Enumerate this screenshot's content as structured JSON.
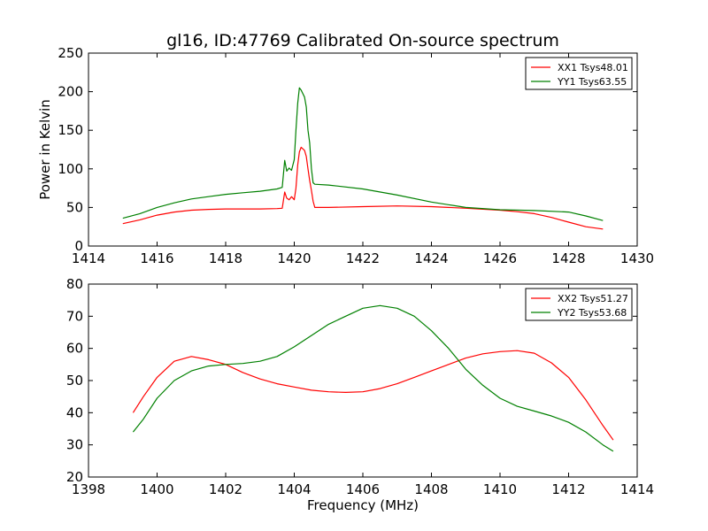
{
  "chart_data": [
    {
      "type": "line",
      "title": "gl16, ID:47769 Calibrated On-source spectrum",
      "xlabel": "",
      "ylabel": "Power in Kelvin",
      "xlim": [
        1414,
        1430
      ],
      "ylim": [
        0,
        250
      ],
      "xticks": [
        1414,
        1416,
        1418,
        1420,
        1422,
        1424,
        1426,
        1428,
        1430
      ],
      "yticks": [
        0,
        50,
        100,
        150,
        200,
        250
      ],
      "grid": false,
      "legend_position": "top-right",
      "series": [
        {
          "name": "XX1 Tsys48.01",
          "color": "#ff0000",
          "points": [
            [
              1415.0,
              29
            ],
            [
              1415.5,
              34
            ],
            [
              1416.0,
              40
            ],
            [
              1416.5,
              44
            ],
            [
              1417.0,
              46.5
            ],
            [
              1417.5,
              47.5
            ],
            [
              1418.0,
              48
            ],
            [
              1418.5,
              48
            ],
            [
              1419.0,
              48
            ],
            [
              1419.5,
              48.5
            ],
            [
              1419.65,
              49
            ],
            [
              1419.72,
              70
            ],
            [
              1419.78,
              62
            ],
            [
              1419.85,
              60
            ],
            [
              1419.92,
              64
            ],
            [
              1420.0,
              60
            ],
            [
              1420.05,
              75
            ],
            [
              1420.1,
              105
            ],
            [
              1420.15,
              122
            ],
            [
              1420.2,
              128
            ],
            [
              1420.3,
              124
            ],
            [
              1420.35,
              116
            ],
            [
              1420.4,
              100
            ],
            [
              1420.45,
              85
            ],
            [
              1420.5,
              72
            ],
            [
              1420.55,
              58
            ],
            [
              1420.6,
              50
            ],
            [
              1421.0,
              50
            ],
            [
              1422.0,
              51
            ],
            [
              1423.0,
              52
            ],
            [
              1424.0,
              51
            ],
            [
              1425.0,
              49
            ],
            [
              1426.0,
              46.5
            ],
            [
              1426.5,
              44.5
            ],
            [
              1427.0,
              42
            ],
            [
              1427.5,
              37
            ],
            [
              1428.0,
              31
            ],
            [
              1428.5,
              25
            ],
            [
              1429.0,
              22
            ]
          ]
        },
        {
          "name": "YY1 Tsys63.55",
          "color": "#008000",
          "points": [
            [
              1415.0,
              36
            ],
            [
              1415.5,
              42
            ],
            [
              1416.0,
              50
            ],
            [
              1416.5,
              56
            ],
            [
              1417.0,
              61
            ],
            [
              1417.5,
              64
            ],
            [
              1418.0,
              67
            ],
            [
              1418.5,
              69
            ],
            [
              1419.0,
              71
            ],
            [
              1419.5,
              74
            ],
            [
              1419.65,
              76
            ],
            [
              1419.72,
              111
            ],
            [
              1419.78,
              97
            ],
            [
              1419.85,
              101
            ],
            [
              1419.92,
              98
            ],
            [
              1420.0,
              112
            ],
            [
              1420.05,
              150
            ],
            [
              1420.1,
              185
            ],
            [
              1420.15,
              205
            ],
            [
              1420.2,
              202
            ],
            [
              1420.3,
              193
            ],
            [
              1420.35,
              180
            ],
            [
              1420.4,
              150
            ],
            [
              1420.45,
              134
            ],
            [
              1420.5,
              100
            ],
            [
              1420.55,
              82
            ],
            [
              1420.6,
              80
            ],
            [
              1421.0,
              79
            ],
            [
              1422.0,
              74
            ],
            [
              1423.0,
              66
            ],
            [
              1424.0,
              57
            ],
            [
              1425.0,
              50
            ],
            [
              1426.0,
              47
            ],
            [
              1427.0,
              46
            ],
            [
              1428.0,
              44
            ],
            [
              1428.5,
              39
            ],
            [
              1429.0,
              33
            ]
          ]
        }
      ]
    },
    {
      "type": "line",
      "title": "",
      "xlabel": "Frequency (MHz)",
      "ylabel": "",
      "xlim": [
        1398,
        1414
      ],
      "ylim": [
        20,
        80
      ],
      "xticks": [
        1398,
        1400,
        1402,
        1404,
        1406,
        1408,
        1410,
        1412,
        1414
      ],
      "yticks": [
        20,
        30,
        40,
        50,
        60,
        70,
        80
      ],
      "grid": false,
      "legend_position": "top-right",
      "series": [
        {
          "name": "XX2 Tsys51.27",
          "color": "#ff0000",
          "points": [
            [
              1399.3,
              40
            ],
            [
              1399.6,
              45
            ],
            [
              1400.0,
              51
            ],
            [
              1400.5,
              56
            ],
            [
              1401.0,
              57.5
            ],
            [
              1401.5,
              56.5
            ],
            [
              1402.0,
              55
            ],
            [
              1402.5,
              52.5
            ],
            [
              1403.0,
              50.5
            ],
            [
              1403.5,
              49
            ],
            [
              1404.0,
              48
            ],
            [
              1404.5,
              47
            ],
            [
              1405.0,
              46.5
            ],
            [
              1405.5,
              46.3
            ],
            [
              1406.0,
              46.5
            ],
            [
              1406.5,
              47.5
            ],
            [
              1407.0,
              49
            ],
            [
              1407.5,
              51
            ],
            [
              1408.0,
              53
            ],
            [
              1408.5,
              55
            ],
            [
              1409.0,
              57
            ],
            [
              1409.5,
              58.3
            ],
            [
              1410.0,
              59
            ],
            [
              1410.5,
              59.3
            ],
            [
              1411.0,
              58.5
            ],
            [
              1411.5,
              55.5
            ],
            [
              1412.0,
              51
            ],
            [
              1412.5,
              44
            ],
            [
              1413.0,
              36
            ],
            [
              1413.3,
              31.5
            ]
          ]
        },
        {
          "name": "YY2 Tsys53.68",
          "color": "#008000",
          "points": [
            [
              1399.3,
              34
            ],
            [
              1399.6,
              38
            ],
            [
              1400.0,
              44.5
            ],
            [
              1400.5,
              50
            ],
            [
              1401.0,
              53
            ],
            [
              1401.5,
              54.5
            ],
            [
              1402.0,
              55
            ],
            [
              1402.5,
              55.3
            ],
            [
              1403.0,
              56
            ],
            [
              1403.5,
              57.5
            ],
            [
              1404.0,
              60.5
            ],
            [
              1404.5,
              64
            ],
            [
              1405.0,
              67.5
            ],
            [
              1405.5,
              70
            ],
            [
              1406.0,
              72.5
            ],
            [
              1406.5,
              73.3
            ],
            [
              1407.0,
              72.5
            ],
            [
              1407.5,
              70
            ],
            [
              1408.0,
              65.5
            ],
            [
              1408.5,
              60
            ],
            [
              1409.0,
              53.5
            ],
            [
              1409.5,
              48.5
            ],
            [
              1410.0,
              44.5
            ],
            [
              1410.5,
              42
            ],
            [
              1411.0,
              40.5
            ],
            [
              1411.5,
              39
            ],
            [
              1412.0,
              37
            ],
            [
              1412.5,
              34
            ],
            [
              1413.0,
              30
            ],
            [
              1413.3,
              28
            ]
          ]
        }
      ]
    }
  ]
}
